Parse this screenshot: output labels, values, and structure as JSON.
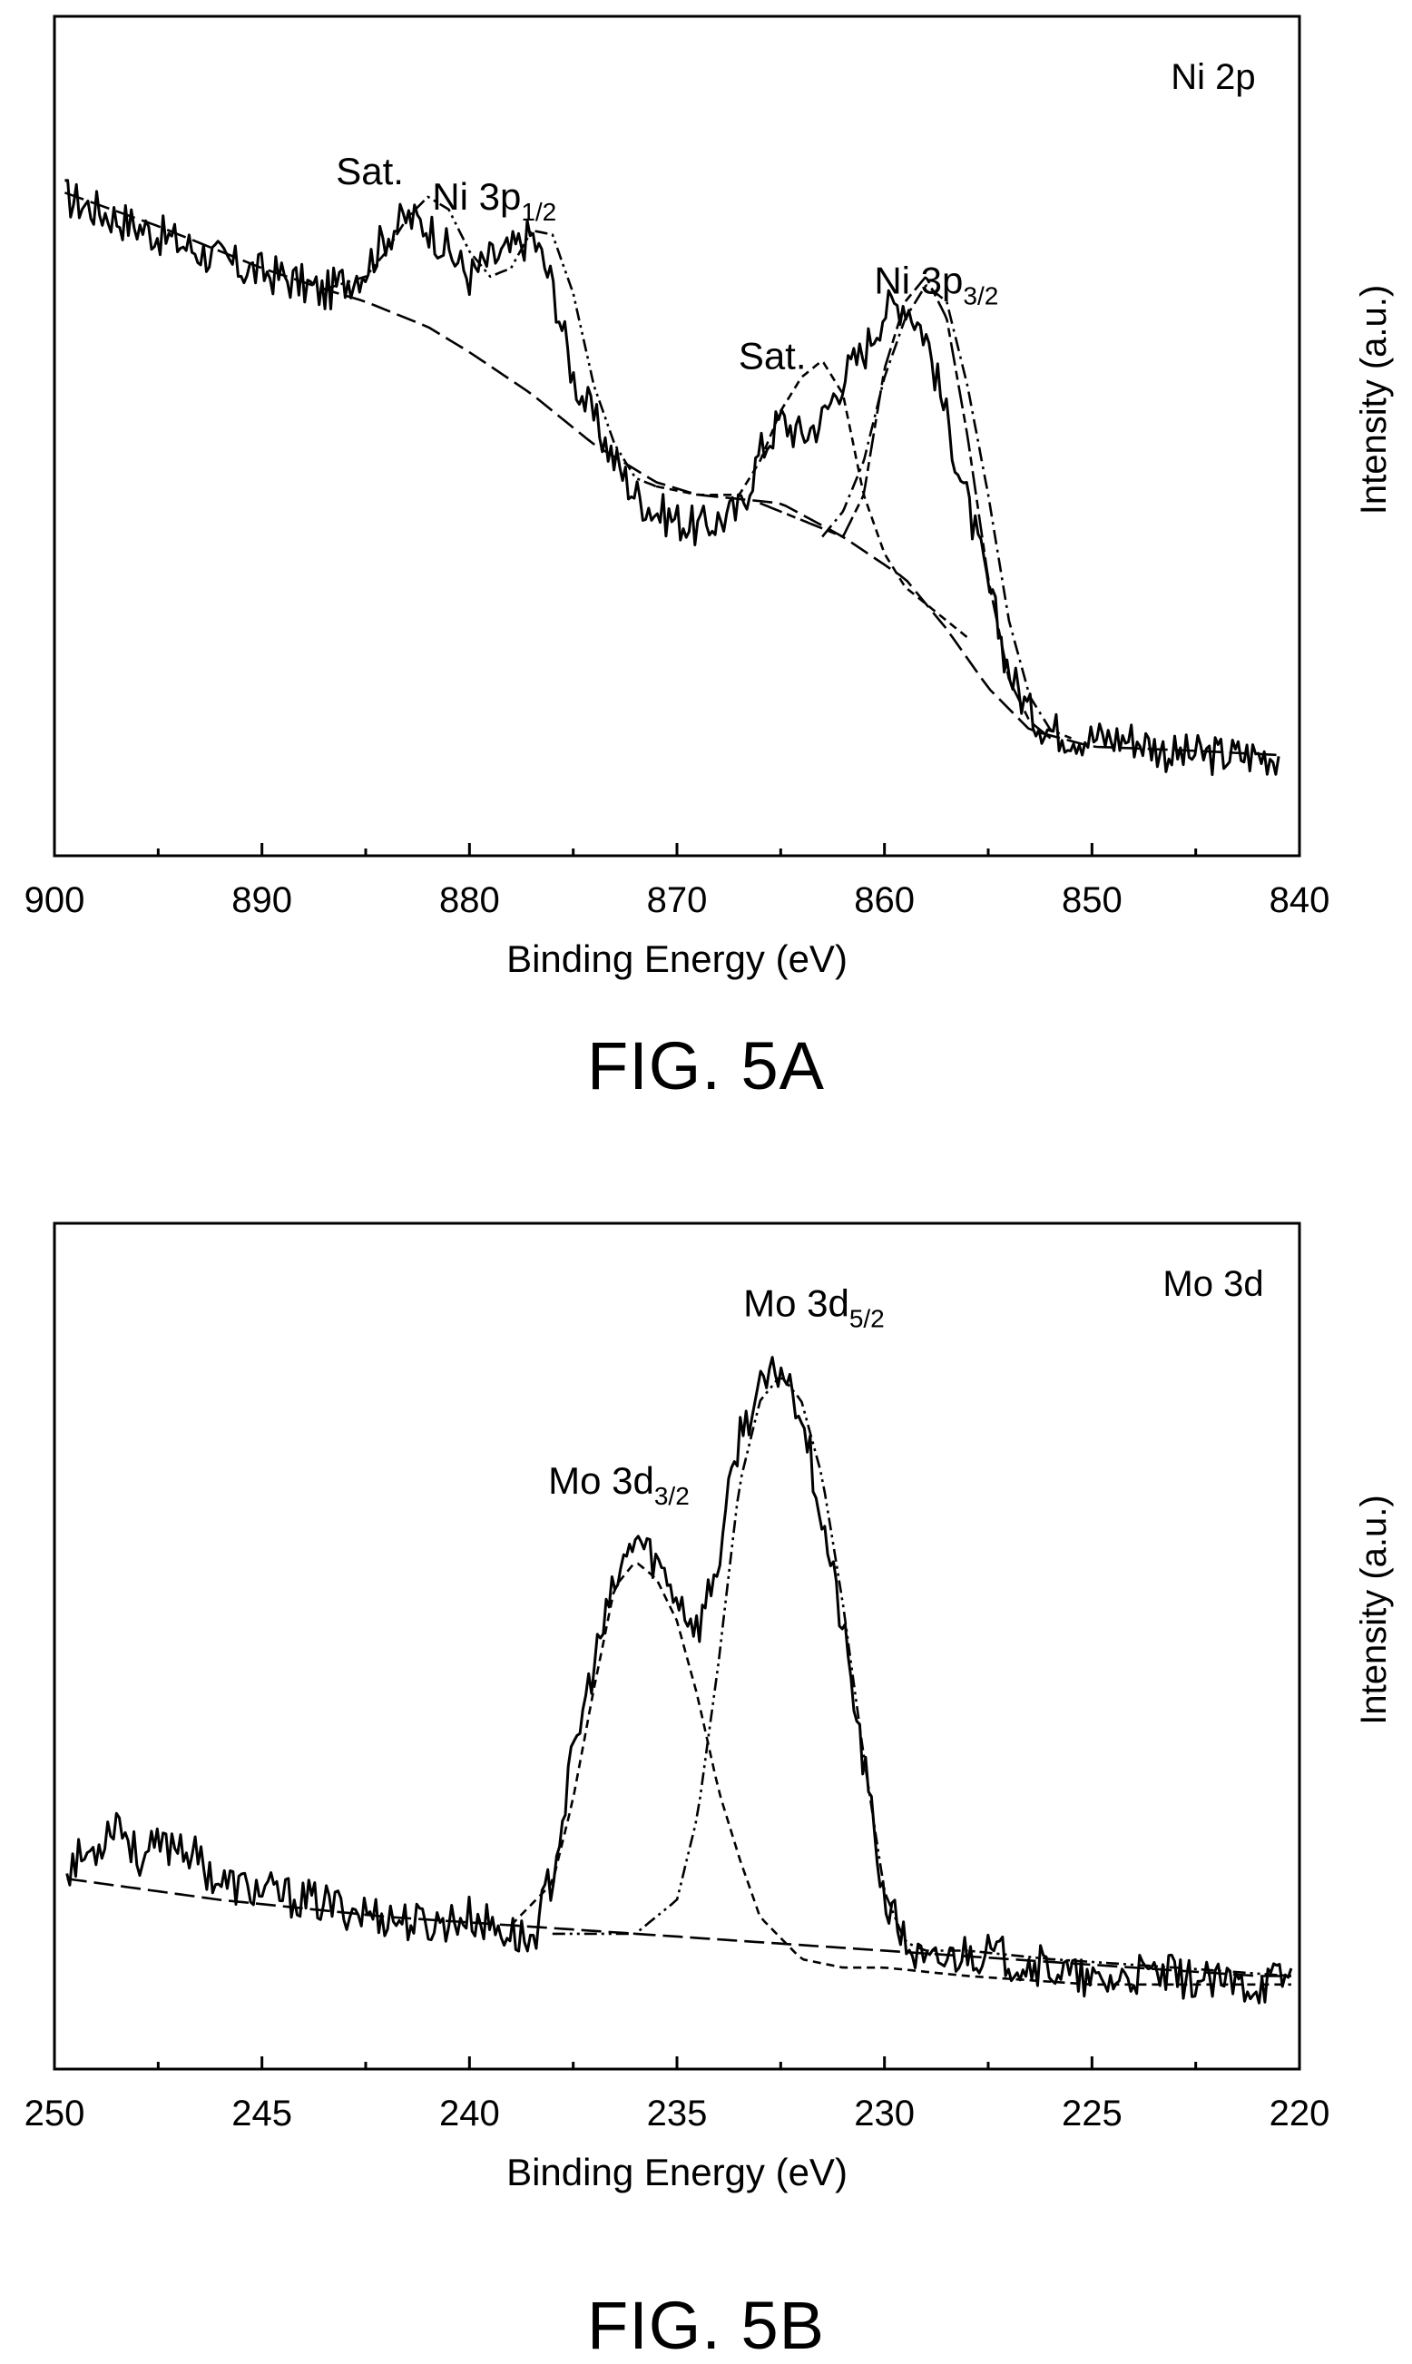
{
  "chart_data": [
    {
      "type": "line",
      "panel_label": "Ni 2p",
      "caption": "FIG. 5A",
      "xlabel": "Binding Energy (eV)",
      "ylabel": "Intensity (a.u.)",
      "xlim": [
        900,
        840
      ],
      "x_reversed": true,
      "xticks": [
        900,
        890,
        880,
        870,
        860,
        850,
        840
      ],
      "ylim": [
        0,
        1
      ],
      "yticks_shown": false,
      "grid": false,
      "legend": false,
      "annotations": [
        {
          "text": "Sat.",
          "x": 884.8,
          "y": 0.8
        },
        {
          "text": "Ni 3p",
          "sub": "1/2",
          "x": 878.8,
          "y": 0.77
        },
        {
          "text": "Sat.",
          "x": 865.4,
          "y": 0.58
        },
        {
          "text": "Ni 3p",
          "sub": "3/2",
          "x": 857.5,
          "y": 0.67
        }
      ],
      "series": [
        {
          "role": "raw",
          "style": "solid-noisy",
          "x": [
            899.5,
            897,
            895,
            893,
            891,
            889,
            887,
            885,
            884,
            883,
            882,
            881,
            880,
            879,
            878,
            877,
            876,
            875,
            874,
            873,
            872,
            871,
            870,
            869,
            868,
            867,
            866,
            865,
            864,
            863,
            862,
            861,
            860,
            859,
            858,
            857,
            856,
            855,
            854,
            853,
            852,
            850,
            848,
            846,
            844,
            842,
            841
          ],
          "y": [
            0.785,
            0.76,
            0.74,
            0.72,
            0.7,
            0.69,
            0.67,
            0.7,
            0.74,
            0.76,
            0.75,
            0.72,
            0.69,
            0.71,
            0.72,
            0.74,
            0.68,
            0.57,
            0.52,
            0.47,
            0.43,
            0.41,
            0.4,
            0.39,
            0.4,
            0.41,
            0.48,
            0.52,
            0.5,
            0.52,
            0.57,
            0.6,
            0.65,
            0.66,
            0.62,
            0.52,
            0.42,
            0.32,
            0.22,
            0.17,
            0.15,
            0.14,
            0.14,
            0.12,
            0.12,
            0.12,
            0.12
          ]
        },
        {
          "role": "background",
          "style": "long-dash",
          "x": [
            899.5,
            895,
            890,
            887,
            885,
            882,
            880,
            877,
            874,
            871,
            869,
            867,
            865,
            862,
            859,
            857,
            855,
            853,
            850,
            845,
            841
          ],
          "y": [
            0.79,
            0.75,
            0.7,
            0.675,
            0.66,
            0.63,
            0.6,
            0.55,
            0.49,
            0.445,
            0.43,
            0.425,
            0.42,
            0.38,
            0.33,
            0.27,
            0.2,
            0.15,
            0.13,
            0.125,
            0.12
          ]
        },
        {
          "role": "fit-Ni3p1/2-sat",
          "style": "dash-dot-dot",
          "x": [
            887,
            885,
            884,
            883,
            882,
            881,
            880,
            879,
            878,
            877,
            876,
            875,
            874,
            873,
            872,
            871
          ],
          "y": [
            0.675,
            0.69,
            0.72,
            0.76,
            0.785,
            0.77,
            0.72,
            0.69,
            0.7,
            0.745,
            0.74,
            0.67,
            0.56,
            0.49,
            0.45,
            0.44
          ]
        },
        {
          "role": "fit-sat-1",
          "style": "short-dash",
          "x": [
            871,
            869,
            867,
            866,
            865,
            864,
            863,
            862,
            861,
            860,
            859,
            858,
            857,
            856
          ],
          "y": [
            0.44,
            0.43,
            0.43,
            0.47,
            0.53,
            0.57,
            0.59,
            0.55,
            0.43,
            0.36,
            0.32,
            0.3,
            0.28,
            0.26
          ]
        },
        {
          "role": "fit-Ni3p3/2",
          "style": "long-dash-short",
          "x": [
            866,
            864,
            862,
            861,
            860,
            859,
            858,
            857,
            856,
            855,
            854,
            853,
            852
          ],
          "y": [
            0.42,
            0.4,
            0.38,
            0.43,
            0.58,
            0.66,
            0.69,
            0.64,
            0.5,
            0.33,
            0.21,
            0.16,
            0.14
          ]
        },
        {
          "role": "fit-Ni3p3/2-b",
          "style": "dash-dot",
          "x": [
            863,
            862,
            861,
            860,
            859,
            858,
            857,
            856,
            855,
            854,
            853,
            852,
            851
          ],
          "y": [
            0.38,
            0.41,
            0.47,
            0.57,
            0.64,
            0.68,
            0.66,
            0.56,
            0.43,
            0.28,
            0.19,
            0.15,
            0.14
          ]
        }
      ]
    },
    {
      "type": "line",
      "panel_label": "Mo 3d",
      "caption": "FIG. 5B",
      "xlabel": "Binding Energy (eV)",
      "ylabel": "Intensity (a.u.)",
      "xlim": [
        250,
        220
      ],
      "x_reversed": true,
      "xticks": [
        250,
        245,
        240,
        235,
        230,
        225,
        220
      ],
      "ylim": [
        0,
        1
      ],
      "yticks_shown": false,
      "grid": false,
      "legend": false,
      "annotations": [
        {
          "text": "Mo 3d",
          "sub": "3/2",
          "x": 236.4,
          "y": 0.68
        },
        {
          "text": "Mo 3d",
          "sub": "5/2",
          "x": 231.7,
          "y": 0.89
        }
      ],
      "series": [
        {
          "role": "raw",
          "style": "solid-noisy",
          "x": [
            249.7,
            249,
            248.5,
            248,
            247,
            246,
            245,
            244,
            243,
            242,
            241,
            240,
            239,
            238.5,
            238,
            237.5,
            237,
            236.5,
            236,
            235.5,
            235,
            234.5,
            234,
            233.5,
            233,
            232.5,
            232,
            231.5,
            231,
            230.5,
            230,
            229.5,
            229,
            228,
            227,
            226,
            225,
            224,
            223,
            222,
            221,
            220.2
          ],
          "y": [
            0.24,
            0.26,
            0.3,
            0.25,
            0.27,
            0.22,
            0.21,
            0.2,
            0.19,
            0.18,
            0.17,
            0.18,
            0.16,
            0.15,
            0.23,
            0.37,
            0.48,
            0.57,
            0.63,
            0.6,
            0.56,
            0.52,
            0.6,
            0.75,
            0.8,
            0.83,
            0.78,
            0.65,
            0.52,
            0.36,
            0.2,
            0.15,
            0.12,
            0.14,
            0.13,
            0.12,
            0.1,
            0.11,
            0.11,
            0.1,
            0.1,
            0.11
          ]
        },
        {
          "role": "background",
          "style": "long-dash",
          "x": [
            249.7,
            246,
            242,
            239,
            236,
            233,
            230,
            227,
            224,
            221,
            220.2
          ],
          "y": [
            0.225,
            0.2,
            0.18,
            0.17,
            0.16,
            0.15,
            0.14,
            0.13,
            0.12,
            0.11,
            0.11
          ]
        },
        {
          "role": "fit-Mo3d3/2",
          "style": "short-dash",
          "x": [
            239,
            238,
            237.5,
            237,
            236.5,
            236,
            235.5,
            235,
            234.5,
            234,
            233.5,
            233,
            232,
            231,
            230,
            228,
            225,
            222,
            220.2
          ],
          "y": [
            0.17,
            0.22,
            0.32,
            0.45,
            0.57,
            0.6,
            0.58,
            0.53,
            0.44,
            0.33,
            0.25,
            0.18,
            0.13,
            0.12,
            0.12,
            0.11,
            0.1,
            0.1,
            0.1
          ]
        },
        {
          "role": "fit-Mo3d5/2",
          "style": "dash-dot-dot",
          "x": [
            238,
            236,
            235,
            234.5,
            234,
            233.5,
            233,
            232.5,
            232,
            231.5,
            231,
            230.5,
            230,
            229.5,
            229,
            228,
            226,
            223,
            220.2
          ],
          "y": [
            0.16,
            0.16,
            0.2,
            0.3,
            0.48,
            0.69,
            0.79,
            0.82,
            0.79,
            0.7,
            0.55,
            0.37,
            0.21,
            0.15,
            0.14,
            0.14,
            0.13,
            0.12,
            0.11
          ]
        }
      ]
    }
  ]
}
